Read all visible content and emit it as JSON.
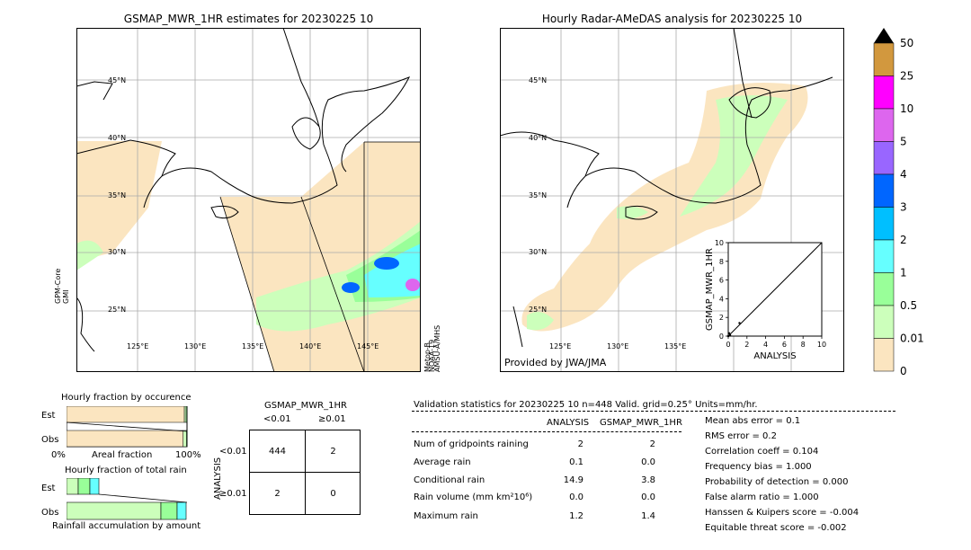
{
  "left_map": {
    "title": "GSMAP_MWR_1HR estimates for 20230225 10",
    "lat_labels": [
      "45°N",
      "40°N",
      "35°N",
      "30°N",
      "25°N"
    ],
    "lon_labels": [
      "125°E",
      "130°E",
      "135°E",
      "140°E",
      "145°E"
    ],
    "left_sensor": "GPM-Core\nGMI",
    "right_sensor_a": "NOAA-19",
    "right_sensor_b": "AMSU-A/MHS",
    "right_sensor_c": "Metop-B"
  },
  "right_map": {
    "title": "Hourly Radar-AMeDAS analysis for 20230225 10",
    "lat_labels": [
      "45°N",
      "40°N",
      "35°N",
      "30°N",
      "25°N"
    ],
    "lon_labels": [
      "125°E",
      "130°E",
      "135°E"
    ],
    "credit": "Provided by JWA/JMA"
  },
  "colorbar": {
    "labels": [
      "50",
      "25",
      "10",
      "5",
      "4",
      "3",
      "2",
      "1",
      "0.5",
      "0.01",
      "0"
    ],
    "colors": [
      "#d2983e",
      "#ff00ff",
      "#dd66ee",
      "#9966ff",
      "#0066ff",
      "#00bfff",
      "#66ffff",
      "#99ff99",
      "#ccffbb",
      "#fbe5c0"
    ]
  },
  "chart_data": [
    {
      "type": "scatter",
      "xlabel": "ANALYSIS",
      "ylabel": "GSMAP_MWR_1HR",
      "xlim": [
        0,
        10
      ],
      "ylim": [
        0,
        10
      ],
      "x_ticks": [
        "0",
        "2",
        "4",
        "6",
        "8",
        "10"
      ],
      "y_ticks": [
        "0",
        "2",
        "4",
        "6",
        "8",
        "10"
      ],
      "points": [
        [
          0.0,
          0.0
        ],
        [
          0.1,
          0.3
        ],
        [
          0.2,
          0.1
        ],
        [
          1.2,
          1.4
        ]
      ]
    },
    {
      "type": "bar",
      "title": "Hourly fraction by occurence",
      "categories": [
        "Est",
        "Obs"
      ],
      "xlabel": "Areal fraction",
      "x_ticks": [
        "0%",
        "100%"
      ],
      "series": [
        {
          "values": [
            0.978,
            0.968
          ]
        },
        {
          "values": [
            0.015,
            0.027
          ]
        },
        {
          "values": [
            0.007,
            0.005
          ]
        }
      ]
    },
    {
      "type": "bar",
      "title": "Hourly fraction of total rain",
      "categories": [
        "Est",
        "Obs"
      ],
      "xlabel": "Rainfall accumulation by amount"
    }
  ],
  "contingency": {
    "title": "GSMAP_MWR_1HR",
    "col_headers": [
      "<0.01",
      "≥0.01"
    ],
    "row_axis": "ANALYSIS",
    "row_headers": [
      "<0.01",
      "≥0.01"
    ],
    "cells": [
      [
        "444",
        "2"
      ],
      [
        "2",
        "0"
      ]
    ]
  },
  "validation": {
    "header": "Validation statistics for 20230225 10  n=448 Valid. grid=0.25° Units=mm/hr.",
    "col_a": "ANALYSIS",
    "col_b": "GSMAP_MWR_1HR",
    "rows": [
      {
        "label": "Num of gridpoints raining",
        "a": "2",
        "b": "2"
      },
      {
        "label": "Average rain",
        "a": "0.1",
        "b": "0.0"
      },
      {
        "label": "Conditional rain",
        "a": "14.9",
        "b": "3.8"
      },
      {
        "label": "Rain volume (mm km²10⁶)",
        "a": "0.0",
        "b": "0.0"
      },
      {
        "label": "Maximum rain",
        "a": "1.2",
        "b": "1.4"
      }
    ],
    "scores": [
      "Mean abs error =    0.1",
      "RMS error =    0.2",
      "Correlation coeff =  0.104",
      "Frequency bias =  1.000",
      "Probability of detection =  0.000",
      "False alarm ratio =  1.000",
      "Hanssen & Kuipers score = -0.004",
      "Equitable threat score = -0.002"
    ]
  }
}
